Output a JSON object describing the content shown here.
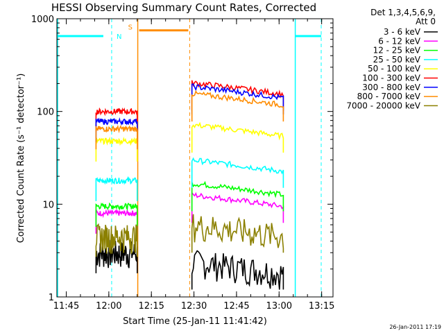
{
  "chart_data": {
    "type": "line",
    "title": "HESSI Observing Summary Count Rates, Corrected",
    "xlabel": "Start Time (25-Jan-11 11:41:42)",
    "ylabel": "Corrected Count Rate (s⁻¹ detector⁻¹)",
    "x_unit": "minutes since 11:41:42",
    "xlim": [
      0,
      97.3
    ],
    "ylim": [
      1,
      1000
    ],
    "y_scale": "log",
    "x_ticks": [
      {
        "t": 3.3,
        "label": "11:45"
      },
      {
        "t": 18.3,
        "label": "12:00"
      },
      {
        "t": 33.3,
        "label": "12:15"
      },
      {
        "t": 48.3,
        "label": "12:30"
      },
      {
        "t": 63.3,
        "label": "12:45"
      },
      {
        "t": 78.3,
        "label": "13:00"
      },
      {
        "t": 93.3,
        "label": "13:15"
      }
    ],
    "y_ticks": [
      {
        "v": 1,
        "label": "1"
      },
      {
        "v": 10,
        "label": "10"
      },
      {
        "v": 100,
        "label": "100"
      },
      {
        "v": 1000,
        "label": "1000"
      }
    ],
    "legend": {
      "position": "right",
      "header": [
        "Det 1,3,4,5,6,9,",
        "Att 0"
      ]
    },
    "timestamp": "26-Jan-2011 17:19",
    "intervals": [
      {
        "type": "night",
        "label": "N",
        "color": "#00ffff",
        "start": 19.3,
        "end": 84.0,
        "level": 650
      },
      {
        "type": "saa",
        "label": "S",
        "color": "#ff8c00",
        "start": 28.5,
        "end": 46.8,
        "level": 750
      }
    ],
    "segments": [
      [
        13.8,
        28.3
      ],
      [
        47.6,
        79.8
      ]
    ],
    "series": [
      {
        "name": "3 - 6 keV",
        "color": "#000000",
        "values": [
          3,
          2
        ]
      },
      {
        "name": "6 - 12 keV",
        "color": "#ff00ff",
        "values": [
          8,
          10.5
        ]
      },
      {
        "name": "12 - 25 keV",
        "color": "#00ff00",
        "values": [
          9.5,
          14
        ]
      },
      {
        "name": "25 - 50 keV",
        "color": "#00ffff",
        "values": [
          18,
          25
        ]
      },
      {
        "name": "50 - 100 keV",
        "color": "#ffff00",
        "values": [
          48,
          60
        ]
      },
      {
        "name": "100 - 300 keV",
        "color": "#ff0000",
        "values": [
          100,
          170
        ]
      },
      {
        "name": "300 - 800 keV",
        "color": "#0000ff",
        "values": [
          78,
          155
        ]
      },
      {
        "name": "800 - 7000 keV",
        "color": "#ff8c00",
        "values": [
          65,
          130
        ]
      },
      {
        "name": "7000 - 20000 keV",
        "color": "#8b8000",
        "values": [
          4.5,
          5
        ]
      }
    ]
  }
}
